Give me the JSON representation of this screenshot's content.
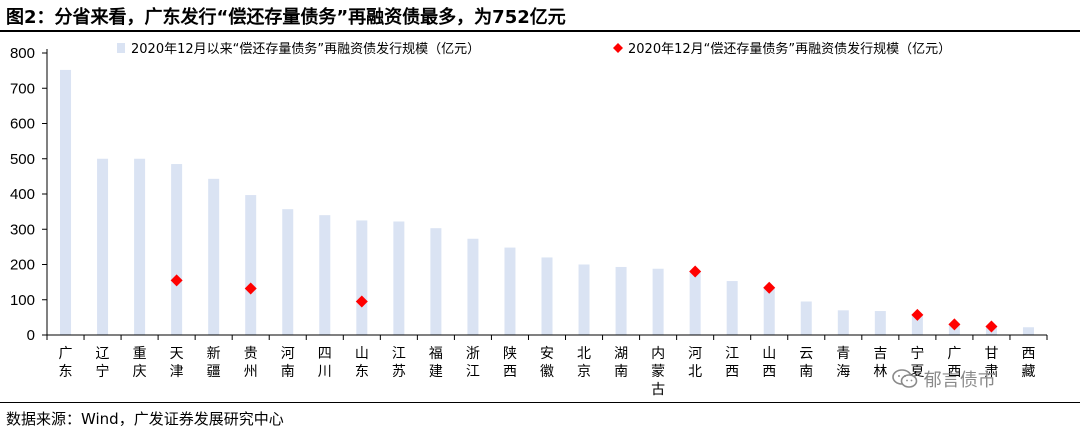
{
  "figure": {
    "title": "图2：分省来看，广东发行“偿还存量债务”再融资债最多，为752亿元",
    "source": "数据来源：Wind，广发证券发展研究中心",
    "watermark": "郁言债市"
  },
  "colors": {
    "bar": "#dae3f3",
    "marker": "#ff0000",
    "axis": "#000000",
    "title_rule": "#000000",
    "watermark": "#8a8a8a"
  },
  "chart_data": {
    "type": "bar",
    "title": "",
    "xlabel": "",
    "ylabel": "",
    "ylim": [
      0,
      800
    ],
    "yticks": [
      0,
      100,
      200,
      300,
      400,
      500,
      600,
      700,
      800
    ],
    "grid": false,
    "legend_position": "top",
    "categories": [
      "广东",
      "辽宁",
      "重庆",
      "天津",
      "新疆",
      "贵州",
      "河南",
      "四川",
      "山东",
      "江苏",
      "福建",
      "浙江",
      "陕西",
      "安徽",
      "北京",
      "湖南",
      "内蒙古",
      "河北",
      "江西",
      "山西",
      "云南",
      "青海",
      "吉林",
      "宁夏",
      "广西",
      "甘肃",
      "西藏"
    ],
    "series": [
      {
        "name": "2020年12月以来“偿还存量债务”再融资债发行规模（亿元）",
        "kind": "bar",
        "values": [
          752,
          500,
          500,
          485,
          443,
          397,
          357,
          340,
          325,
          322,
          303,
          273,
          248,
          220,
          200,
          193,
          188,
          180,
          153,
          134,
          95,
          70,
          68,
          57,
          30,
          24,
          22
        ]
      },
      {
        "name": "2020年12月“偿还存量债务”再融资债发行规模（亿元）",
        "kind": "marker",
        "values": [
          null,
          null,
          null,
          155,
          null,
          132,
          null,
          null,
          95,
          null,
          null,
          null,
          null,
          null,
          null,
          null,
          null,
          180,
          null,
          134,
          null,
          null,
          null,
          57,
          30,
          24,
          null
        ]
      }
    ]
  }
}
